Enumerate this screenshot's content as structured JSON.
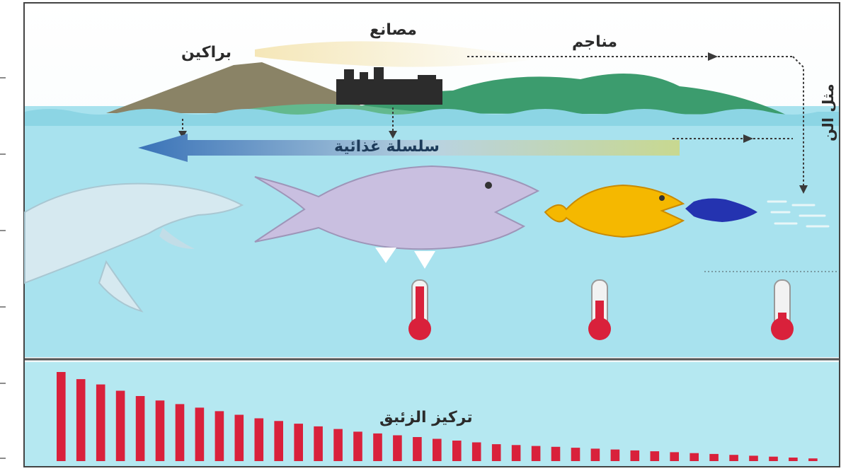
{
  "labels": {
    "volcanoes": "براكين",
    "factories": "مصانع",
    "mines": "مناجم",
    "side_text": "مثل الن",
    "food_chain": "سلسلة غذائية",
    "mercury_concentration": "تركيز الزئبق"
  },
  "icons": {
    "volcano": "volcano-icon",
    "factory": "factory-icon",
    "mountain": "mountain-icon",
    "dolphin": "dolphin-icon",
    "big_fish": "big-fish-icon",
    "medium_fish": "medium-fish-icon",
    "small_fish": "small-fish-icon",
    "plankton": "plankton-icon",
    "thermometer": "thermometer-icon",
    "arrow": "left-arrow-icon"
  },
  "colors": {
    "water": "#a8e2ee",
    "water_dark": "#66c9dc",
    "bars": "#d9213b",
    "big_fish": "#c9bfe0",
    "medium_fish": "#f5b800",
    "small_fish": "#2433b0",
    "thermometer": "#d9213b"
  },
  "chart_data": {
    "type": "bar",
    "xlabel": "",
    "ylabel": "",
    "series": [
      {
        "values": [
          100,
          92,
          86,
          79,
          73,
          68,
          64,
          60,
          56,
          52,
          48,
          45,
          42,
          39,
          36,
          33,
          31,
          29,
          27,
          25,
          23,
          21,
          19,
          18,
          17,
          16,
          15,
          14,
          13,
          12,
          11,
          10,
          9,
          8,
          7,
          6,
          5,
          4,
          3
        ]
      }
    ],
    "trend": "decreasing"
  }
}
